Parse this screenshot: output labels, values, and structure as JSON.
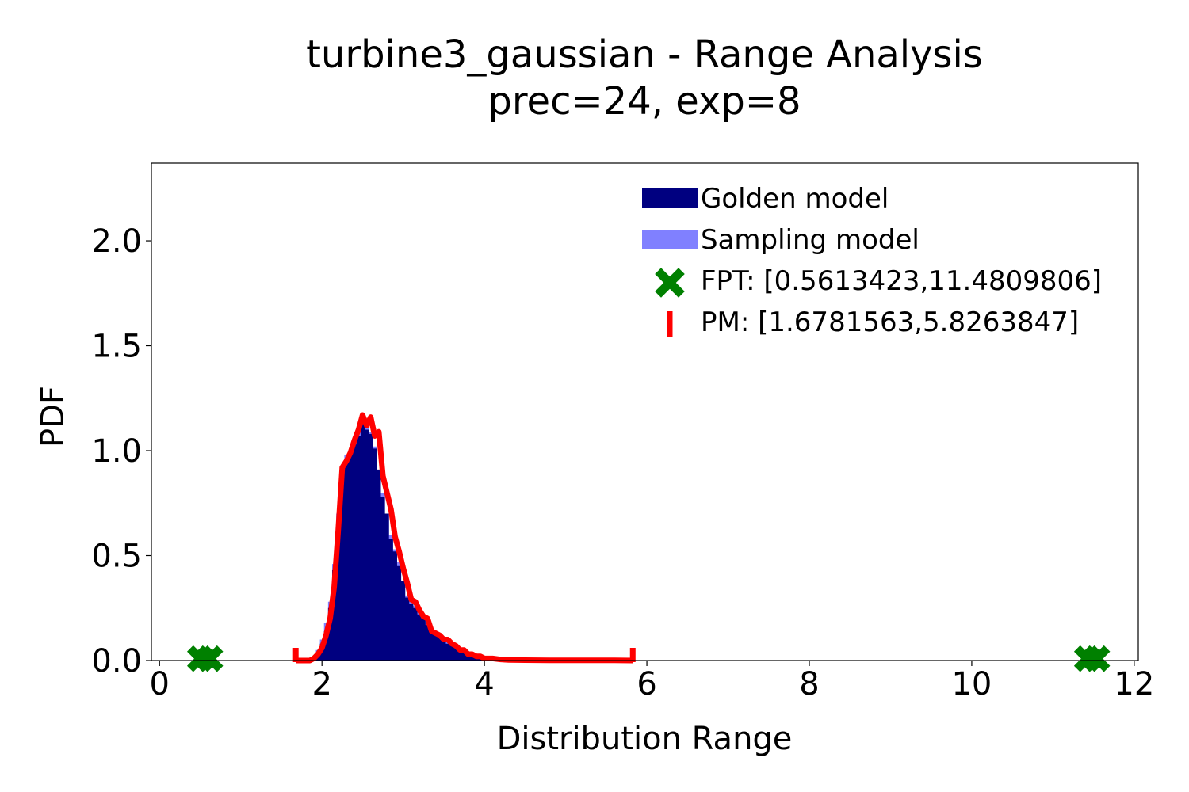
{
  "chart_data": {
    "type": "area",
    "title_line1": "turbine3_gaussian - Range Analysis",
    "title_line2": "prec=24, exp=8",
    "xlabel": "Distribution Range",
    "ylabel": "PDF",
    "xlim": [
      -0.1,
      12.05
    ],
    "ylim": [
      0,
      2.37
    ],
    "x_ticks": [
      0,
      2,
      4,
      6,
      8,
      10,
      12
    ],
    "x_tick_labels": [
      "0",
      "2",
      "4",
      "6",
      "8",
      "10",
      "12"
    ],
    "y_ticks": [
      0,
      0.5,
      1,
      1.5,
      2
    ],
    "y_tick_labels": [
      "0.0",
      "0.5",
      "1.0",
      "1.5",
      "2.0"
    ],
    "grid": false,
    "legend_position": "top-right",
    "colors": {
      "golden": "#000080",
      "sampling": "#8080ff",
      "fpt": "#008000",
      "pm": "#ff0000"
    },
    "series": [
      {
        "name": "Golden model",
        "x": [
          1.95,
          2.0,
          2.05,
          2.1,
          2.15,
          2.2,
          2.25,
          2.3,
          2.35,
          2.4,
          2.45,
          2.5,
          2.55,
          2.6,
          2.65,
          2.7,
          2.75,
          2.8,
          2.85,
          2.9,
          2.95,
          3.0,
          3.05,
          3.1,
          3.15,
          3.2,
          3.25,
          3.3,
          3.35,
          3.4,
          3.45,
          3.5,
          3.55,
          3.6,
          3.65,
          3.7,
          3.75,
          3.8,
          3.85,
          3.9,
          3.95,
          4.0,
          4.05,
          4.1,
          4.15,
          4.2,
          4.3,
          4.4,
          4.5,
          4.6
        ],
        "values": [
          0.03,
          0.08,
          0.14,
          0.25,
          0.43,
          0.65,
          0.88,
          0.96,
          0.98,
          1.03,
          1.07,
          1.13,
          1.1,
          1.08,
          1.01,
          0.91,
          0.78,
          0.7,
          0.58,
          0.52,
          0.45,
          0.38,
          0.3,
          0.27,
          0.25,
          0.22,
          0.2,
          0.17,
          0.14,
          0.13,
          0.12,
          0.1,
          0.08,
          0.07,
          0.06,
          0.05,
          0.04,
          0.035,
          0.03,
          0.025,
          0.02,
          0.018,
          0.015,
          0.012,
          0.01,
          0.008,
          0.005,
          0.003,
          0.002,
          0.0
        ]
      },
      {
        "name": "Sampling model",
        "x": [
          1.9,
          1.95,
          2.0,
          2.05,
          2.1,
          2.15,
          2.2,
          2.25,
          2.3,
          2.35,
          2.4,
          2.45,
          2.5,
          2.55,
          2.6,
          2.65,
          2.7,
          2.75,
          2.8,
          2.85,
          2.9,
          2.95,
          3.0,
          3.05,
          3.1,
          3.15,
          3.2,
          3.25,
          3.3,
          3.35,
          3.4,
          3.45,
          3.5,
          3.55,
          3.6,
          3.65,
          3.7,
          3.75,
          3.8,
          3.85,
          3.9,
          3.95,
          4.0,
          4.05,
          4.1,
          4.15,
          4.2,
          4.3
        ],
        "values": [
          0.02,
          0.05,
          0.1,
          0.18,
          0.28,
          0.46,
          0.7,
          0.92,
          0.98,
          1.0,
          1.05,
          1.1,
          1.14,
          1.12,
          1.09,
          1.02,
          0.9,
          0.8,
          0.69,
          0.6,
          0.53,
          0.47,
          0.38,
          0.31,
          0.28,
          0.26,
          0.23,
          0.21,
          0.18,
          0.15,
          0.14,
          0.12,
          0.11,
          0.09,
          0.08,
          0.07,
          0.06,
          0.05,
          0.04,
          0.03,
          0.025,
          0.02,
          0.018,
          0.015,
          0.012,
          0.01,
          0.008,
          0.0
        ]
      },
      {
        "name": "PM",
        "x": [
          1.68,
          1.75,
          1.85,
          1.9,
          1.95,
          2.0,
          2.05,
          2.1,
          2.15,
          2.2,
          2.25,
          2.3,
          2.35,
          2.4,
          2.45,
          2.5,
          2.55,
          2.6,
          2.65,
          2.7,
          2.75,
          2.8,
          2.85,
          2.9,
          2.95,
          3.0,
          3.05,
          3.1,
          3.15,
          3.2,
          3.25,
          3.3,
          3.35,
          3.4,
          3.45,
          3.5,
          3.55,
          3.6,
          3.65,
          3.7,
          3.75,
          3.8,
          3.85,
          3.9,
          3.95,
          4.0,
          4.05,
          4.1,
          4.2,
          4.3,
          4.5,
          4.8,
          5.2,
          5.6,
          5.83
        ],
        "values": [
          0.0,
          0.0,
          0.0,
          0.01,
          0.03,
          0.06,
          0.12,
          0.2,
          0.35,
          0.62,
          0.92,
          0.95,
          0.99,
          1.05,
          1.1,
          1.17,
          1.12,
          1.16,
          1.07,
          1.09,
          0.88,
          0.8,
          0.72,
          0.59,
          0.52,
          0.44,
          0.37,
          0.29,
          0.28,
          0.24,
          0.21,
          0.2,
          0.14,
          0.13,
          0.12,
          0.1,
          0.1,
          0.08,
          0.07,
          0.05,
          0.05,
          0.03,
          0.03,
          0.02,
          0.02,
          0.01,
          0.01,
          0.01,
          0.005,
          0.003,
          0.002,
          0.001,
          0.001,
          0.001,
          0.0
        ]
      }
    ],
    "fpt_points": [
      {
        "x": 0.5613423,
        "y": 0.02
      },
      {
        "x": 11.4809806,
        "y": 0.02
      }
    ],
    "pm_bounds": [
      1.6781563,
      5.8263847
    ],
    "legend": [
      {
        "key": "golden",
        "label": "Golden model"
      },
      {
        "key": "sampling",
        "label": "Sampling model"
      },
      {
        "key": "fpt",
        "label": "FPT: [0.5613423,11.4809806]"
      },
      {
        "key": "pm",
        "label": "PM: [1.6781563,5.8263847]"
      }
    ]
  }
}
